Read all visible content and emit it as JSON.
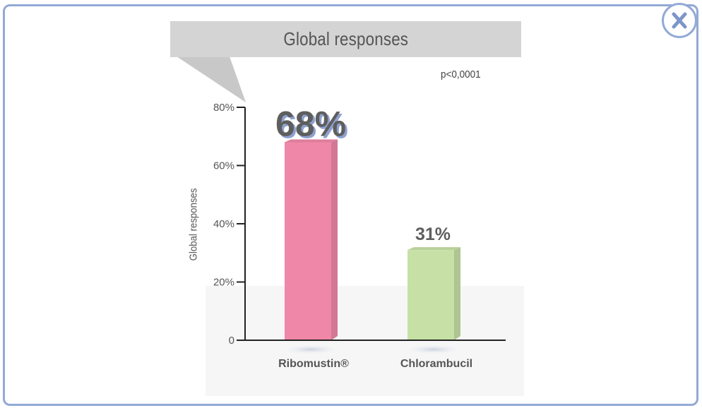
{
  "window": {
    "close_icon": "close-x-icon",
    "border_color": "#93a9d6"
  },
  "chart_data": {
    "type": "bar",
    "title": "Global responses",
    "annotation": "p<0,0001",
    "ylabel": "Global responses",
    "xlabel": "",
    "categories": [
      "Ribomustin®",
      "Chlorambucil"
    ],
    "values": [
      68,
      31
    ],
    "value_labels": [
      "68%",
      "31%"
    ],
    "colors": [
      "#ef87a8",
      "#c6e0a6"
    ],
    "ylim": [
      0,
      80
    ],
    "yticks": [
      0,
      20,
      40,
      60,
      80
    ],
    "ytick_labels": [
      "0",
      "20%",
      "40%",
      "60%",
      "80%"
    ],
    "grid": false,
    "legend": "none"
  }
}
